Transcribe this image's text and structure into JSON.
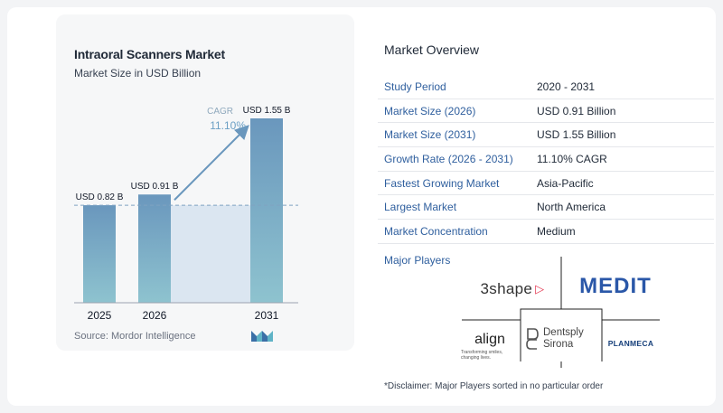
{
  "chart_data": {
    "type": "bar",
    "title": "Intraoral Scanners Market",
    "subtitle": "Market Size in USD Billion",
    "categories": [
      "2025",
      "2026",
      "2031"
    ],
    "values": [
      0.82,
      0.91,
      1.55
    ],
    "data_labels": [
      "USD 0.82 B",
      "USD 0.91 B",
      "USD 1.55 B"
    ],
    "ylim": [
      0,
      1.55
    ],
    "xlabel": "",
    "ylabel": "",
    "annotation": {
      "label": "CAGR",
      "value": "11.10%"
    },
    "reference_line": 0.82,
    "grid": false,
    "colors": {
      "bar_top": "#6a97bd",
      "bar_bottom": "#8ec3cf",
      "highlight": "#dbe6f1",
      "arrow": "#6a97bd"
    }
  },
  "source": "Source: Mordor Intelligence",
  "overview": {
    "title": "Market Overview",
    "rows": [
      {
        "key": "Study Period",
        "value": "2020 - 2031"
      },
      {
        "key": "Market Size (2026)",
        "value": "USD 0.91 Billion"
      },
      {
        "key": "Market Size (2031)",
        "value": "USD 1.55 Billion"
      },
      {
        "key": "Growth Rate (2026 - 2031)",
        "value": "11.10% CAGR"
      },
      {
        "key": "Fastest Growing Market",
        "value": "Asia-Pacific"
      },
      {
        "key": "Largest Market",
        "value": "North America"
      },
      {
        "key": "Market Concentration",
        "value": "Medium"
      }
    ]
  },
  "major_players": {
    "title": "Major Players",
    "logos": {
      "threeshape": "3shape",
      "medit": "MEDIT",
      "align": "align",
      "align_tagline": "Transforming smiles, changing lives.",
      "dentsply_1": "Dentsply",
      "dentsply_2": "Sirona",
      "planmeca": "PLANMECA"
    }
  },
  "disclaimer": "*Disclaimer: Major Players sorted in no particular order"
}
